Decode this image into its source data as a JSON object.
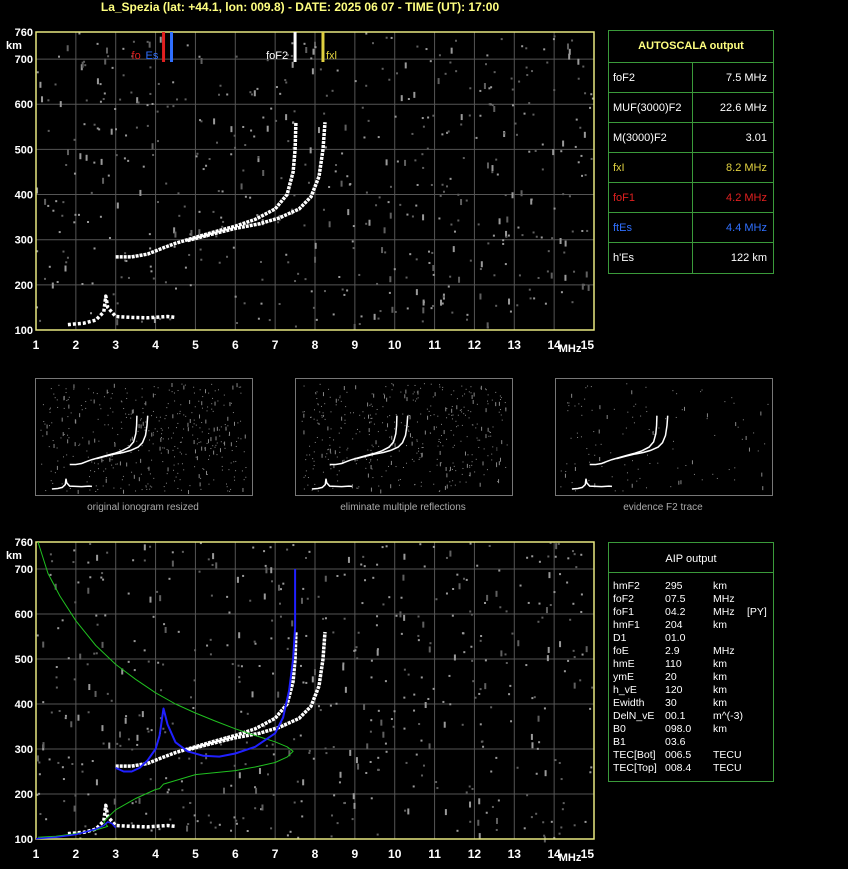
{
  "title": "La_Spezia (lat: +44.1, lon: 009.8) - DATE: 2025 06 07 - TIME (UT): 17:00",
  "colors": {
    "grid": "#555555",
    "axis": "#e8e880",
    "fof2": "#ffffff",
    "fxl": "#e0d040",
    "fof1": "#e02020",
    "ftes": "#3070ff",
    "profile_green": "#20c020",
    "profile_blue": "#2020ff",
    "panel_border": "#3a9a3a"
  },
  "chart_data": [
    {
      "type": "scatter",
      "name": "ionogram-top",
      "xlabel": "MHz",
      "ylabel": "km",
      "xlim": [
        1,
        15
      ],
      "ylim": [
        100,
        760
      ],
      "xticks": [
        "1",
        "2",
        "3",
        "4",
        "5",
        "6",
        "7",
        "8",
        "9",
        "10",
        "11",
        "12",
        "13",
        "14",
        "15"
      ],
      "yticks": [
        "100",
        "200",
        "300",
        "400",
        "500",
        "600",
        "700",
        "760"
      ],
      "grid": true,
      "markers": [
        {
          "label": "foF1",
          "x": 4.2,
          "color": "#e02020"
        },
        {
          "label": "ftEs",
          "x": 4.4,
          "color": "#3070ff"
        },
        {
          "label": "foF2",
          "x": 7.5,
          "color": "#ffffff"
        },
        {
          "label": "fxl",
          "x": 8.2,
          "color": "#e0d040"
        }
      ],
      "series": [
        {
          "values": [
            [
              1.8,
              112
            ],
            [
              2.2,
              115
            ],
            [
              2.5,
              122
            ],
            [
              2.7,
              140
            ],
            [
              2.75,
              175
            ],
            [
              2.8,
              150
            ],
            [
              3.0,
              130
            ],
            [
              3.4,
              128
            ],
            [
              3.8,
              127
            ],
            [
              4.3,
              130
            ],
            [
              4.5,
              128
            ]
          ]
        },
        {
          "values": [
            [
              3.0,
              262
            ],
            [
              3.4,
              262
            ],
            [
              3.8,
              268
            ],
            [
              4.2,
              282
            ],
            [
              4.5,
              292
            ],
            [
              5.0,
              305
            ],
            [
              5.5,
              318
            ],
            [
              6.0,
              330
            ],
            [
              6.5,
              345
            ],
            [
              7.0,
              368
            ],
            [
              7.3,
              400
            ],
            [
              7.45,
              450
            ],
            [
              7.5,
              500
            ],
            [
              7.52,
              560
            ]
          ]
        },
        {
          "values": [
            [
              4.8,
              298
            ],
            [
              5.4,
              312
            ],
            [
              6.0,
              325
            ],
            [
              6.6,
              335
            ],
            [
              7.1,
              348
            ],
            [
              7.6,
              368
            ],
            [
              7.9,
              395
            ],
            [
              8.1,
              440
            ],
            [
              8.2,
              500
            ],
            [
              8.25,
              560
            ]
          ]
        }
      ]
    },
    {
      "type": "scatter",
      "name": "ionogram-aip",
      "xlabel": "MHz",
      "ylabel": "km",
      "xlim": [
        1,
        15
      ],
      "ylim": [
        100,
        760
      ],
      "xticks": [
        "1",
        "2",
        "3",
        "4",
        "5",
        "6",
        "7",
        "8",
        "9",
        "10",
        "11",
        "12",
        "13",
        "14",
        "15"
      ],
      "yticks": [
        "100",
        "200",
        "300",
        "400",
        "500",
        "600",
        "700",
        "760"
      ],
      "grid": true,
      "series": [
        {
          "values": [
            [
              1.8,
              112
            ],
            [
              2.2,
              115
            ],
            [
              2.5,
              122
            ],
            [
              2.7,
              140
            ],
            [
              2.75,
              175
            ],
            [
              2.8,
              150
            ],
            [
              3.0,
              130
            ],
            [
              3.4,
              128
            ],
            [
              3.8,
              127
            ],
            [
              4.3,
              130
            ],
            [
              4.5,
              128
            ]
          ]
        },
        {
          "values": [
            [
              3.0,
              262
            ],
            [
              3.4,
              262
            ],
            [
              3.8,
              268
            ],
            [
              4.2,
              282
            ],
            [
              4.5,
              292
            ],
            [
              5.0,
              305
            ],
            [
              5.5,
              318
            ],
            [
              6.0,
              330
            ],
            [
              6.5,
              345
            ],
            [
              7.0,
              368
            ],
            [
              7.3,
              400
            ],
            [
              7.45,
              450
            ],
            [
              7.5,
              500
            ],
            [
              7.52,
              560
            ]
          ]
        },
        {
          "values": [
            [
              4.8,
              298
            ],
            [
              5.4,
              312
            ],
            [
              6.0,
              325
            ],
            [
              6.6,
              335
            ],
            [
              7.1,
              348
            ],
            [
              7.6,
              368
            ],
            [
              7.9,
              395
            ],
            [
              8.1,
              440
            ],
            [
              8.2,
              500
            ],
            [
              8.25,
              560
            ]
          ]
        },
        {
          "values": [
            [
              1.05,
              760
            ],
            [
              1.3,
              690
            ],
            [
              1.6,
              640
            ],
            [
              2.0,
              585
            ],
            [
              2.5,
              530
            ],
            [
              3.0,
              488
            ],
            [
              3.5,
              455
            ],
            [
              4.0,
              425
            ],
            [
              4.5,
              400
            ],
            [
              5.0,
              380
            ],
            [
              5.5,
              362
            ],
            [
              6.0,
              345
            ],
            [
              6.5,
              330
            ],
            [
              7.0,
              316
            ],
            [
              7.3,
              305
            ],
            [
              7.45,
              295
            ],
            [
              7.3,
              282
            ],
            [
              7.0,
              270
            ],
            [
              6.5,
              260
            ],
            [
              6.0,
              252
            ],
            [
              5.0,
              243
            ],
            [
              4.2,
              222
            ],
            [
              4.1,
              212
            ],
            [
              4.0,
              210
            ],
            [
              3.5,
              190
            ],
            [
              3.0,
              165
            ],
            [
              2.8,
              148
            ],
            [
              2.7,
              138
            ],
            [
              2.8,
              128
            ],
            [
              2.5,
              120
            ],
            [
              2.0,
              112
            ],
            [
              1.5,
              106
            ],
            [
              1.05,
              104
            ]
          ]
        },
        {
          "values": [
            [
              1.0,
              101
            ],
            [
              1.5,
              104
            ],
            [
              2.0,
              110
            ],
            [
              2.5,
              122
            ],
            [
              2.7,
              130
            ],
            [
              2.8,
              138
            ],
            [
              2.9,
              135
            ],
            [
              3.0,
              125
            ]
          ]
        },
        {
          "values": [
            [
              3.0,
              258
            ],
            [
              3.2,
              250
            ],
            [
              3.4,
              250
            ],
            [
              3.6,
              258
            ],
            [
              3.8,
              275
            ],
            [
              4.0,
              300
            ],
            [
              4.1,
              330
            ],
            [
              4.2,
              390
            ],
            [
              4.3,
              355
            ],
            [
              4.5,
              315
            ],
            [
              4.8,
              295
            ],
            [
              5.2,
              285
            ],
            [
              5.6,
              283
            ],
            [
              6.0,
              290
            ],
            [
              6.5,
              305
            ],
            [
              7.0,
              335
            ],
            [
              7.2,
              370
            ],
            [
              7.35,
              430
            ],
            [
              7.45,
              500
            ],
            [
              7.5,
              570
            ],
            [
              7.5,
              700
            ]
          ]
        }
      ]
    }
  ],
  "autoscala": {
    "title": "AUTOSCALA output",
    "rows": [
      {
        "key": "foF2",
        "value": "7.5 MHz",
        "color": "#ffffff"
      },
      {
        "key": "MUF(3000)F2",
        "value": "22.6 MHz",
        "color": "#ffffff"
      },
      {
        "key": "M(3000)F2",
        "value": "3.01",
        "color": "#ffffff"
      },
      {
        "key": "fxI",
        "value": "8.2 MHz",
        "color": "#e0d040"
      },
      {
        "key": "foF1",
        "value": "4.2 MHz",
        "color": "#e02020"
      },
      {
        "key": "ftEs",
        "value": "4.4 MHz",
        "color": "#3070ff"
      },
      {
        "key": "h'Es",
        "value": "122     km",
        "color": "#ffffff"
      }
    ]
  },
  "thumbnails": [
    {
      "caption": "original ionogram resized"
    },
    {
      "caption": "eliminate multiple reflections"
    },
    {
      "caption": "evidence F2 trace"
    }
  ],
  "aip": {
    "title": "AIP output",
    "rows": [
      {
        "key": "hmF2",
        "value": "295",
        "unit": "km",
        "extra": ""
      },
      {
        "key": "foF2",
        "value": "07.5",
        "unit": "MHz",
        "extra": ""
      },
      {
        "key": "foF1",
        "value": "04.2",
        "unit": "MHz",
        "extra": "[PY]"
      },
      {
        "key": "hmF1",
        "value": "204",
        "unit": "km",
        "extra": ""
      },
      {
        "key": "D1",
        "value": "01.0",
        "unit": "",
        "extra": ""
      },
      {
        "key": "foE",
        "value": "2.9",
        "unit": "MHz",
        "extra": ""
      },
      {
        "key": "hmE",
        "value": "110",
        "unit": "km",
        "extra": ""
      },
      {
        "key": "ymE",
        "value": "20",
        "unit": "km",
        "extra": ""
      },
      {
        "key": "h_vE",
        "value": "120",
        "unit": "km",
        "extra": ""
      },
      {
        "key": "Ewidth",
        "value": "30",
        "unit": "km",
        "extra": ""
      },
      {
        "key": "DelN_vE",
        "value": "00.1",
        "unit": "m^(-3)",
        "extra": ""
      },
      {
        "key": "B0",
        "value": "098.0",
        "unit": "km",
        "extra": ""
      },
      {
        "key": "B1",
        "value": "03.6",
        "unit": "",
        "extra": ""
      },
      {
        "key": "TEC[Bot]",
        "value": "006.5",
        "unit": "TECU",
        "extra": ""
      },
      {
        "key": "TEC[Top]",
        "value": "008.4",
        "unit": "TECU",
        "extra": ""
      }
    ]
  }
}
